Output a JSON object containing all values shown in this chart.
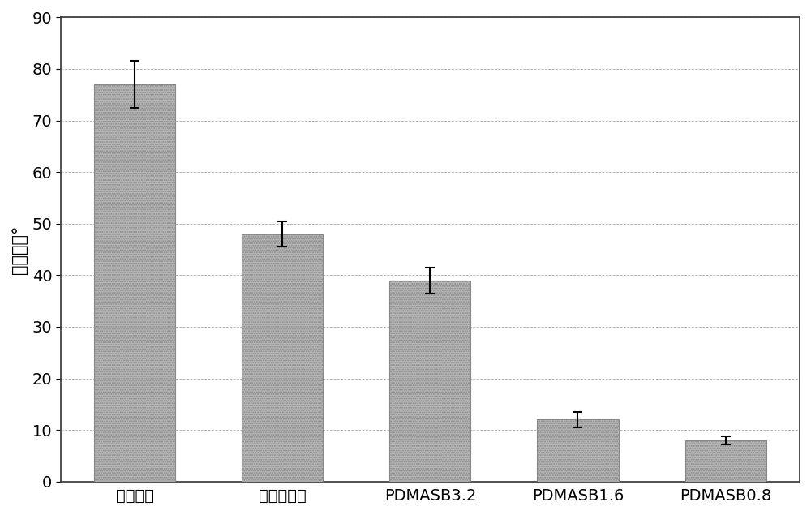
{
  "categories": [
    "未处理样",
    "空白水洗样",
    "PDMASB3.2",
    "PDMASB1.6",
    "PDMASB0.8"
  ],
  "values": [
    77.0,
    48.0,
    39.0,
    12.0,
    8.0
  ],
  "errors": [
    4.5,
    2.5,
    2.5,
    1.5,
    0.8
  ],
  "bar_color": "#b8b8b8",
  "bar_edgecolor": "#888888",
  "ylabel": "接触角／°",
  "ylim": [
    0,
    90
  ],
  "yticks": [
    0,
    10,
    20,
    30,
    40,
    50,
    60,
    70,
    80,
    90
  ],
  "background_color": "#ffffff",
  "plot_bg_color": "#ffffff",
  "grid_color": "#aaaaaa",
  "ylabel_fontsize": 15,
  "tick_fontsize": 14,
  "xlabel_fontsize": 14,
  "bar_width": 0.55,
  "error_capsize": 4,
  "error_color": "black",
  "error_linewidth": 1.5,
  "border_color": "#333333"
}
